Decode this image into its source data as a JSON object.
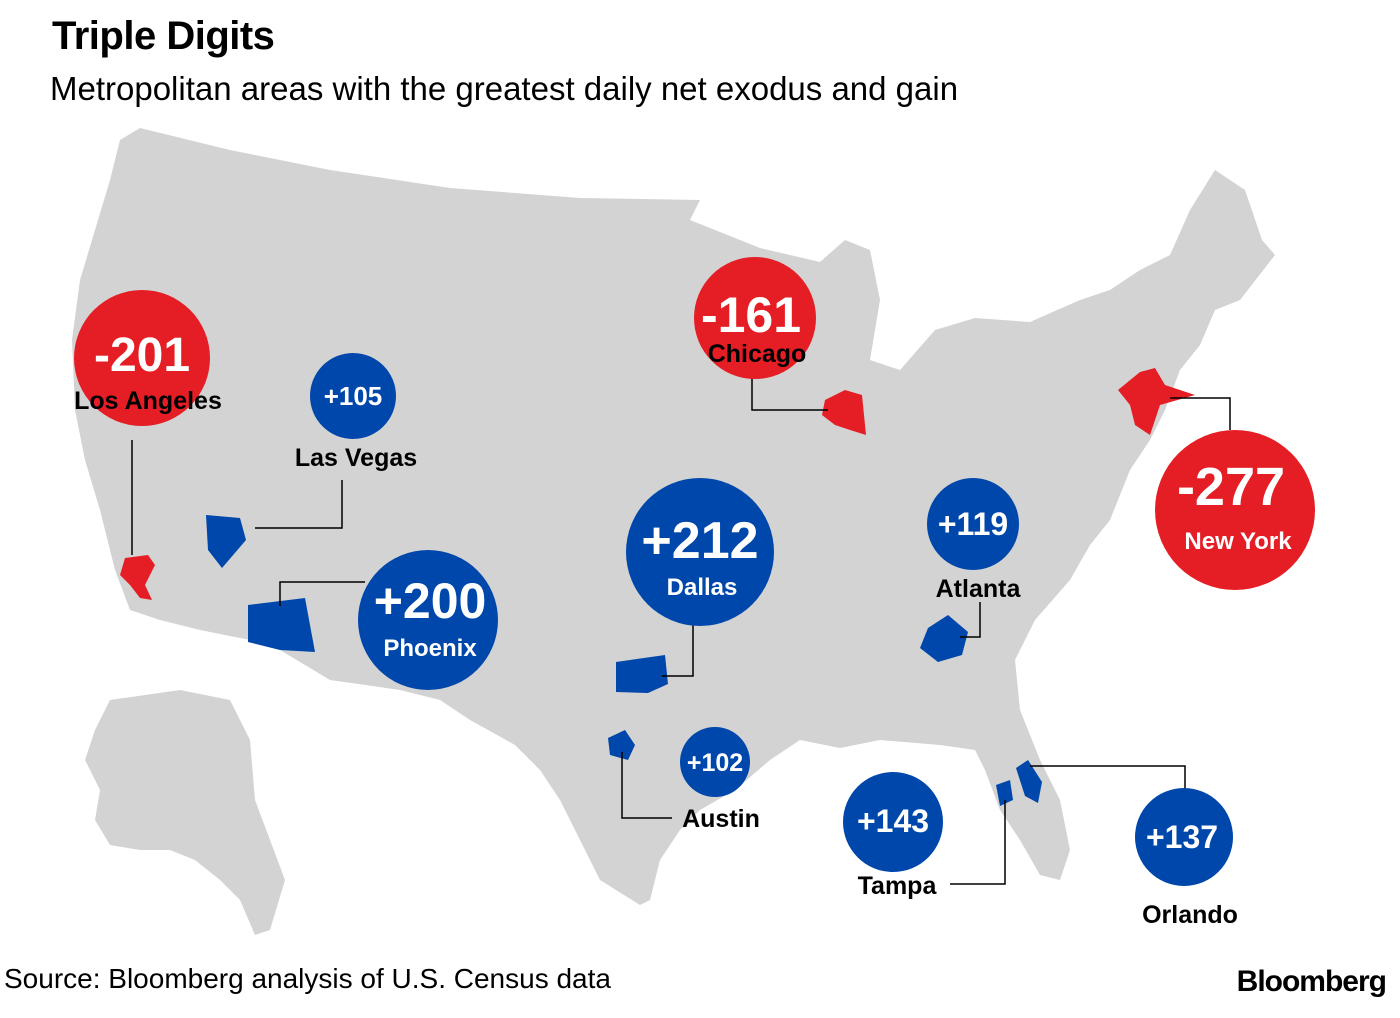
{
  "title": "Triple Digits",
  "subtitle": "Metropolitan areas with the greatest daily net exodus and gain",
  "source": "Source: Bloomberg analysis of U.S. Census data",
  "brand": "Bloomberg",
  "colors": {
    "loss": "#e51e25",
    "gain": "#0047ab",
    "land": "#d3d3d3",
    "leader": "#000000"
  },
  "metros": [
    {
      "city": "Los Angeles",
      "value": "-201",
      "type": "loss"
    },
    {
      "city": "Chicago",
      "value": "-161",
      "type": "loss"
    },
    {
      "city": "New York",
      "value": "-277",
      "type": "loss"
    },
    {
      "city": "Las Vegas",
      "value": "+105",
      "type": "gain"
    },
    {
      "city": "Phoenix",
      "value": "+200",
      "type": "gain"
    },
    {
      "city": "Dallas",
      "value": "+212",
      "type": "gain"
    },
    {
      "city": "Atlanta",
      "value": "+119",
      "type": "gain"
    },
    {
      "city": "Austin",
      "value": "+102",
      "type": "gain"
    },
    {
      "city": "Tampa",
      "value": "+143",
      "type": "gain"
    },
    {
      "city": "Orlando",
      "value": "+137",
      "type": "gain"
    }
  ]
}
